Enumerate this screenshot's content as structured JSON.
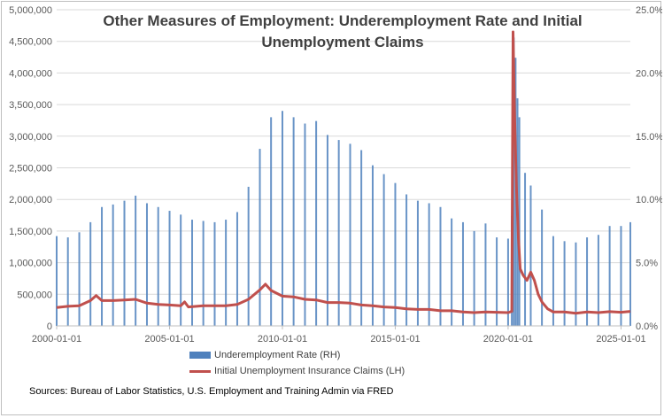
{
  "title_lines": [
    "Other Measures of  Employment: Underemployment Rate and Initial",
    "Unemployment Claims"
  ],
  "source_note": "Sources:  Bureau of Labor Statistics, U.S. Employment and Training Admin via FRED",
  "colors": {
    "underemployment": "#4f81bd",
    "claims": "#c0504d",
    "grid": "#d9d9d9",
    "axis_text": "#595959",
    "title": "#404040"
  },
  "chart_data": {
    "type": "bar",
    "title": "Other Measures of  Employment: Underemployment Rate and Initial Unemployment Claims",
    "grid": true,
    "legend_position": "bottom",
    "x_range": [
      "2000-01-01",
      "2025-06-01"
    ],
    "x_ticks": [
      "2000-01-01",
      "2005-01-01",
      "2010-01-01",
      "2015-01-01",
      "2020-01-01",
      "2025-01-01"
    ],
    "y_left": {
      "range": [
        0,
        5000000
      ],
      "ticks": [
        "0",
        "500,000",
        "1,000,000",
        "1,500,000",
        "2,000,000",
        "2,500,000",
        "3,000,000",
        "3,500,000",
        "4,000,000",
        "4,500,000",
        "5,000,000"
      ]
    },
    "y_right": {
      "range": [
        0,
        25
      ],
      "ticks": [
        "0.0%",
        "5.0%",
        "10.0%",
        "15.0%",
        "20.0%",
        "25.0%"
      ]
    },
    "series": [
      {
        "name": "Underemployment Rate (RH)",
        "kind": "bar",
        "axis": "right",
        "points": [
          [
            "2000-01-01",
            7.1
          ],
          [
            "2000-07-01",
            7.0
          ],
          [
            "2001-01-01",
            7.4
          ],
          [
            "2001-07-01",
            8.2
          ],
          [
            "2002-01-01",
            9.4
          ],
          [
            "2002-07-01",
            9.6
          ],
          [
            "2003-01-01",
            9.9
          ],
          [
            "2003-07-01",
            10.3
          ],
          [
            "2004-01-01",
            9.7
          ],
          [
            "2004-07-01",
            9.4
          ],
          [
            "2005-01-01",
            9.1
          ],
          [
            "2005-07-01",
            8.8
          ],
          [
            "2006-01-01",
            8.4
          ],
          [
            "2006-07-01",
            8.3
          ],
          [
            "2007-01-01",
            8.2
          ],
          [
            "2007-07-01",
            8.4
          ],
          [
            "2008-01-01",
            9.0
          ],
          [
            "2008-07-01",
            11.0
          ],
          [
            "2009-01-01",
            14.0
          ],
          [
            "2009-07-01",
            16.5
          ],
          [
            "2010-01-01",
            17.0
          ],
          [
            "2010-07-01",
            16.5
          ],
          [
            "2011-01-01",
            16.0
          ],
          [
            "2011-07-01",
            16.2
          ],
          [
            "2012-01-01",
            15.1
          ],
          [
            "2012-07-01",
            14.7
          ],
          [
            "2013-01-01",
            14.4
          ],
          [
            "2013-07-01",
            13.9
          ],
          [
            "2014-01-01",
            12.7
          ],
          [
            "2014-07-01",
            12.0
          ],
          [
            "2015-01-01",
            11.3
          ],
          [
            "2015-07-01",
            10.4
          ],
          [
            "2016-01-01",
            9.9
          ],
          [
            "2016-07-01",
            9.7
          ],
          [
            "2017-01-01",
            9.4
          ],
          [
            "2017-07-01",
            8.5
          ],
          [
            "2018-01-01",
            8.2
          ],
          [
            "2018-07-01",
            7.5
          ],
          [
            "2019-01-01",
            8.1
          ],
          [
            "2019-07-01",
            7.0
          ],
          [
            "2020-01-01",
            6.9
          ],
          [
            "2020-03-01",
            8.7
          ],
          [
            "2020-04-01",
            22.8
          ],
          [
            "2020-05-01",
            21.2
          ],
          [
            "2020-06-01",
            18.0
          ],
          [
            "2020-07-01",
            16.5
          ],
          [
            "2020-10-01",
            12.1
          ],
          [
            "2021-01-01",
            11.1
          ],
          [
            "2021-07-01",
            9.2
          ],
          [
            "2022-01-01",
            7.1
          ],
          [
            "2022-07-01",
            6.7
          ],
          [
            "2023-01-01",
            6.6
          ],
          [
            "2023-07-01",
            7.0
          ],
          [
            "2024-01-01",
            7.2
          ],
          [
            "2024-07-01",
            7.9
          ],
          [
            "2025-01-01",
            7.9
          ],
          [
            "2025-06-01",
            8.2
          ]
        ]
      },
      {
        "name": "Initial  Unemployment Insurance Claims (LH)",
        "kind": "line",
        "axis": "left",
        "points": [
          [
            "2000-01-01",
            290000
          ],
          [
            "2000-07-01",
            310000
          ],
          [
            "2001-01-01",
            320000
          ],
          [
            "2001-07-01",
            400000
          ],
          [
            "2001-10-01",
            480000
          ],
          [
            "2002-01-01",
            400000
          ],
          [
            "2002-07-01",
            400000
          ],
          [
            "2003-01-01",
            410000
          ],
          [
            "2003-07-01",
            420000
          ],
          [
            "2004-01-01",
            360000
          ],
          [
            "2004-07-01",
            340000
          ],
          [
            "2005-01-01",
            330000
          ],
          [
            "2005-07-01",
            320000
          ],
          [
            "2005-09-01",
            380000
          ],
          [
            "2005-11-01",
            300000
          ],
          [
            "2006-07-01",
            320000
          ],
          [
            "2007-07-01",
            320000
          ],
          [
            "2008-01-01",
            340000
          ],
          [
            "2008-07-01",
            420000
          ],
          [
            "2009-01-01",
            570000
          ],
          [
            "2009-04-01",
            660000
          ],
          [
            "2009-07-01",
            560000
          ],
          [
            "2010-01-01",
            470000
          ],
          [
            "2010-07-01",
            460000
          ],
          [
            "2011-01-01",
            420000
          ],
          [
            "2011-07-01",
            410000
          ],
          [
            "2012-01-01",
            370000
          ],
          [
            "2012-07-01",
            370000
          ],
          [
            "2013-01-01",
            360000
          ],
          [
            "2013-07-01",
            330000
          ],
          [
            "2014-01-01",
            320000
          ],
          [
            "2014-07-01",
            300000
          ],
          [
            "2015-01-01",
            290000
          ],
          [
            "2015-07-01",
            270000
          ],
          [
            "2016-01-01",
            260000
          ],
          [
            "2016-07-01",
            260000
          ],
          [
            "2017-01-01",
            240000
          ],
          [
            "2017-07-01",
            240000
          ],
          [
            "2018-01-01",
            220000
          ],
          [
            "2018-07-01",
            210000
          ],
          [
            "2019-01-01",
            220000
          ],
          [
            "2019-07-01",
            215000
          ],
          [
            "2020-01-01",
            210000
          ],
          [
            "2020-03-01",
            230000
          ],
          [
            "2020-03-21",
            4650000
          ],
          [
            "2020-04-15",
            3300000
          ],
          [
            "2020-05-15",
            2200000
          ],
          [
            "2020-06-15",
            1400000
          ],
          [
            "2020-07-15",
            900000
          ],
          [
            "2020-09-01",
            800000
          ],
          [
            "2020-11-01",
            720000
          ],
          [
            "2021-01-01",
            850000
          ],
          [
            "2021-03-01",
            720000
          ],
          [
            "2021-05-01",
            500000
          ],
          [
            "2021-07-01",
            380000
          ],
          [
            "2021-10-01",
            270000
          ],
          [
            "2022-01-01",
            220000
          ],
          [
            "2022-07-01",
            220000
          ],
          [
            "2023-01-01",
            200000
          ],
          [
            "2023-07-01",
            220000
          ],
          [
            "2024-01-01",
            210000
          ],
          [
            "2024-07-01",
            225000
          ],
          [
            "2025-01-01",
            215000
          ],
          [
            "2025-06-01",
            230000
          ]
        ]
      }
    ]
  }
}
